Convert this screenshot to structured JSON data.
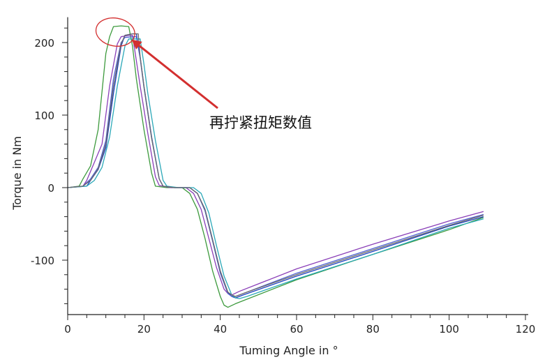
{
  "chart_data": {
    "type": "line",
    "title": "",
    "xlabel": "Tuming Angle in °",
    "ylabel": "Torque in Nm",
    "xlim": [
      0,
      120
    ],
    "ylim": [
      -180,
      235
    ],
    "xticks": [
      0,
      20,
      40,
      60,
      80,
      100,
      120
    ],
    "yticks": [
      -100,
      0,
      100,
      200
    ],
    "grid": false,
    "legend": "none",
    "annotation": {
      "text": "再拧紧扭矩数值",
      "points_to": [
        16,
        208
      ],
      "color": "#d32f2f"
    },
    "series": [
      {
        "color": "#3d9a3d",
        "x": [
          0,
          3,
          4,
          6,
          8,
          10,
          11,
          12,
          14,
          16,
          17,
          18,
          20,
          22,
          23,
          26,
          28,
          30,
          32,
          34,
          36,
          38,
          40,
          41,
          42,
          44,
          60,
          80,
          100,
          109
        ],
        "y": [
          0,
          2,
          12,
          30,
          80,
          185,
          208,
          222,
          223,
          222,
          195,
          150,
          80,
          20,
          2,
          0,
          0,
          0,
          -8,
          -30,
          -70,
          -115,
          -150,
          -162,
          -165,
          -160,
          -127,
          -92,
          -58,
          -41
        ]
      },
      {
        "color": "#8a3fb8",
        "x": [
          0,
          4,
          5,
          7,
          9,
          11,
          13,
          14,
          16,
          17,
          18,
          19,
          21,
          23,
          24,
          27,
          29,
          31,
          33,
          35,
          37,
          39,
          41,
          42,
          43,
          45,
          60,
          80,
          100,
          109
        ],
        "y": [
          0,
          2,
          10,
          35,
          60,
          140,
          198,
          208,
          210,
          210,
          175,
          140,
          75,
          15,
          3,
          0,
          0,
          0,
          -8,
          -30,
          -70,
          -110,
          -140,
          -146,
          -148,
          -143,
          -112,
          -78,
          -46,
          -33
        ]
      },
      {
        "color": "#1f3fbf",
        "x": [
          0,
          5,
          6,
          8,
          10,
          12,
          14,
          15,
          17,
          18,
          19,
          20,
          22,
          24,
          25,
          28,
          30,
          32,
          34,
          36,
          38,
          40,
          42,
          43,
          44,
          46,
          60,
          80,
          100,
          109
        ],
        "y": [
          0,
          2,
          10,
          25,
          55,
          130,
          195,
          210,
          212,
          212,
          180,
          140,
          70,
          12,
          2,
          0,
          0,
          0,
          -8,
          -30,
          -72,
          -115,
          -145,
          -150,
          -152,
          -148,
          -122,
          -88,
          -53,
          -40
        ]
      },
      {
        "color": "#4f5fd0",
        "x": [
          0,
          4,
          6,
          8,
          10,
          12,
          14,
          15,
          17,
          18,
          19,
          20,
          22,
          24,
          25,
          28,
          30,
          32,
          34,
          36,
          38,
          40,
          42,
          43,
          44,
          46,
          60,
          80,
          100,
          109
        ],
        "y": [
          0,
          2,
          12,
          28,
          65,
          150,
          200,
          207,
          208,
          208,
          178,
          138,
          68,
          12,
          2,
          0,
          0,
          0,
          -8,
          -32,
          -74,
          -118,
          -146,
          -150,
          -150,
          -146,
          -118,
          -84,
          -50,
          -37
        ]
      },
      {
        "color": "#2aa8b8",
        "x": [
          0,
          5,
          7,
          9,
          11,
          13,
          15,
          16,
          18,
          19,
          20,
          21,
          23,
          25,
          26,
          29,
          31,
          33,
          35,
          37,
          39,
          41,
          43,
          44,
          45,
          47,
          60,
          80,
          100,
          109
        ],
        "y": [
          0,
          2,
          10,
          28,
          70,
          140,
          195,
          205,
          205,
          205,
          170,
          130,
          65,
          10,
          2,
          0,
          0,
          0,
          -8,
          -35,
          -80,
          -122,
          -148,
          -152,
          -153,
          -150,
          -126,
          -92,
          -56,
          -43
        ]
      },
      {
        "color": "#6a6a6a",
        "x": [
          0,
          4,
          6,
          8,
          10,
          12,
          14,
          15,
          17,
          18,
          18.5,
          19,
          20,
          22,
          24,
          25,
          28,
          30,
          32,
          34,
          36,
          38,
          40,
          42,
          43,
          44,
          46,
          60,
          80,
          100,
          109
        ],
        "y": [
          0,
          2,
          10,
          26,
          60,
          140,
          198,
          210,
          212,
          212,
          212,
          180,
          140,
          68,
          12,
          2,
          0,
          0,
          0,
          -8,
          -30,
          -72,
          -115,
          -144,
          -148,
          -150,
          -146,
          -120,
          -86,
          -52,
          -38
        ]
      }
    ]
  }
}
